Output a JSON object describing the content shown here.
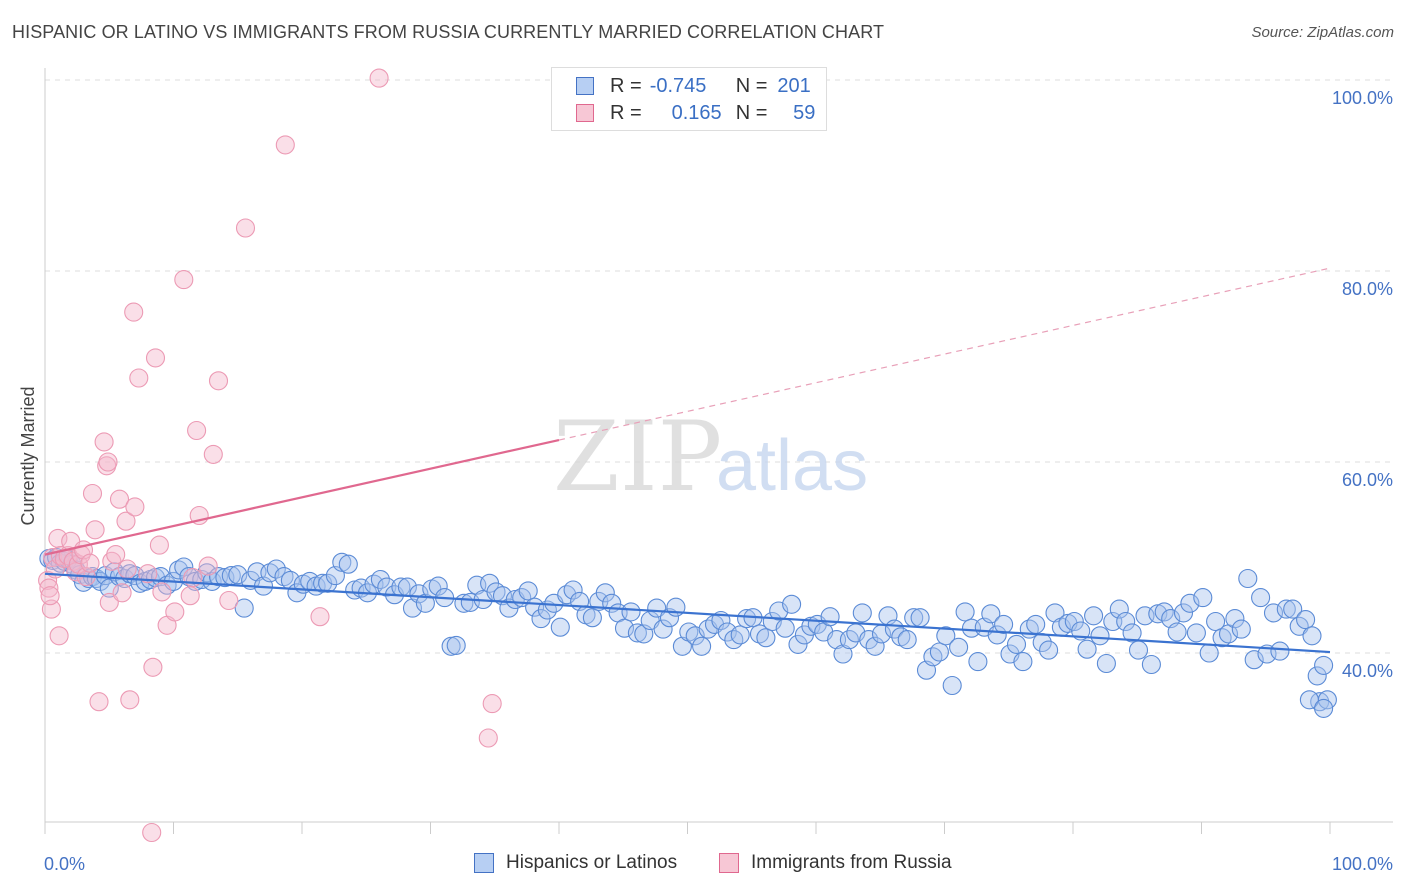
{
  "title": "HISPANIC OR LATINO VS IMMIGRANTS FROM RUSSIA CURRENTLY MARRIED CORRELATION CHART",
  "source": "Source: ZipAtlas.com",
  "watermark": {
    "zip": "ZIP",
    "atlas": "atlas"
  },
  "colors": {
    "blue": "#4472c4",
    "blue_fill": "#a9c4ee",
    "pink": "#e0688f",
    "pink_fill": "#f4b8cb",
    "grid": "#dddddd"
  },
  "legend": {
    "rows": [
      {
        "r_label": "R =",
        "r_value": "-0.745",
        "n_label": "N =",
        "n_value": "201"
      },
      {
        "r_label": "R =",
        "r_value": "0.165",
        "n_label": "N =",
        "n_value": "59"
      }
    ],
    "bottom": [
      "Hispanics or Latinos",
      "Immigrants from Russia"
    ]
  },
  "chart_data": {
    "type": "scatter",
    "title": "HISPANIC OR LATINO VS IMMIGRANTS FROM RUSSIA CURRENTLY MARRIED CORRELATION CHART",
    "xlabel": "",
    "ylabel": "Currently Married",
    "xlim": [
      0,
      100
    ],
    "ylim": [
      21,
      101.5
    ],
    "x_tick_labels": [
      "0.0%",
      "100.0%"
    ],
    "y_ticks": [
      40,
      60,
      80,
      100
    ],
    "y_tick_labels": [
      "40.0%",
      "60.0%",
      "80.0%",
      "100.0%"
    ],
    "grid": true,
    "legend_position": "top-center",
    "series": [
      {
        "name": "Hispanics or Latinos",
        "color": "#4472c4",
        "r": -0.745,
        "n": 201,
        "trend": {
          "x": [
            0,
            100
          ],
          "y": [
            48.3,
            40.1
          ],
          "style": "solid"
        },
        "points": [
          [
            0.3,
            49.9
          ],
          [
            0.6,
            49.7
          ],
          [
            0.9,
            50.0
          ],
          [
            1.2,
            49.4
          ],
          [
            1.5,
            49.6
          ],
          [
            1.8,
            49.8
          ],
          [
            2.1,
            49.3
          ],
          [
            2.4,
            48.7
          ],
          [
            2.7,
            48.2
          ],
          [
            3.0,
            47.4
          ],
          [
            3.4,
            47.8
          ],
          [
            3.7,
            48.0
          ],
          [
            4.0,
            47.8
          ],
          [
            4.3,
            47.5
          ],
          [
            4.7,
            48.1
          ],
          [
            5.0,
            46.8
          ],
          [
            5.4,
            48.5
          ],
          [
            5.8,
            48.0
          ],
          [
            6.2,
            47.8
          ],
          [
            6.6,
            48.3
          ],
          [
            7.0,
            48.1
          ],
          [
            7.4,
            47.3
          ],
          [
            7.8,
            47.5
          ],
          [
            8.2,
            47.7
          ],
          [
            8.6,
            47.9
          ],
          [
            9.0,
            48.0
          ],
          [
            9.5,
            47.1
          ],
          [
            10.0,
            47.5
          ],
          [
            10.4,
            48.7
          ],
          [
            10.8,
            49.0
          ],
          [
            11.2,
            48.0
          ],
          [
            11.7,
            47.5
          ],
          [
            12.2,
            47.7
          ],
          [
            12.6,
            48.4
          ],
          [
            13.0,
            47.5
          ],
          [
            13.5,
            48.0
          ],
          [
            14.0,
            47.9
          ],
          [
            14.5,
            48.1
          ],
          [
            15.0,
            48.2
          ],
          [
            15.5,
            44.7
          ],
          [
            16.0,
            47.6
          ],
          [
            16.5,
            48.5
          ],
          [
            17.0,
            47.0
          ],
          [
            17.5,
            48.4
          ],
          [
            18.0,
            48.8
          ],
          [
            18.6,
            48.0
          ],
          [
            19.1,
            47.6
          ],
          [
            19.6,
            46.3
          ],
          [
            20.1,
            47.2
          ],
          [
            20.6,
            47.5
          ],
          [
            21.1,
            47.0
          ],
          [
            21.6,
            47.3
          ],
          [
            22.0,
            47.3
          ],
          [
            22.6,
            48.1
          ],
          [
            23.1,
            49.5
          ],
          [
            23.6,
            49.3
          ],
          [
            24.1,
            46.6
          ],
          [
            24.6,
            46.8
          ],
          [
            25.1,
            46.3
          ],
          [
            25.6,
            47.2
          ],
          [
            26.1,
            47.7
          ],
          [
            26.6,
            46.9
          ],
          [
            27.2,
            46.1
          ],
          [
            27.7,
            46.9
          ],
          [
            28.2,
            46.9
          ],
          [
            28.6,
            44.7
          ],
          [
            29.1,
            46.2
          ],
          [
            29.6,
            45.2
          ],
          [
            30.1,
            46.7
          ],
          [
            30.6,
            47.0
          ],
          [
            31.1,
            45.8
          ],
          [
            31.6,
            40.7
          ],
          [
            32.0,
            40.8
          ],
          [
            32.6,
            45.2
          ],
          [
            33.1,
            45.3
          ],
          [
            33.6,
            47.1
          ],
          [
            34.1,
            45.6
          ],
          [
            34.6,
            47.3
          ],
          [
            35.1,
            46.4
          ],
          [
            35.6,
            46.0
          ],
          [
            36.1,
            44.7
          ],
          [
            36.6,
            45.6
          ],
          [
            37.1,
            45.8
          ],
          [
            37.6,
            46.5
          ],
          [
            38.1,
            44.8
          ],
          [
            38.6,
            43.6
          ],
          [
            39.1,
            44.5
          ],
          [
            39.6,
            45.2
          ],
          [
            40.1,
            42.7
          ],
          [
            40.6,
            46.1
          ],
          [
            41.1,
            46.6
          ],
          [
            41.6,
            45.4
          ],
          [
            42.1,
            44.0
          ],
          [
            42.6,
            43.7
          ],
          [
            43.1,
            45.4
          ],
          [
            43.6,
            46.3
          ],
          [
            44.1,
            45.2
          ],
          [
            44.6,
            44.2
          ],
          [
            45.1,
            42.6
          ],
          [
            45.6,
            44.3
          ],
          [
            46.1,
            42.1
          ],
          [
            46.6,
            42.0
          ],
          [
            47.1,
            43.4
          ],
          [
            47.6,
            44.7
          ],
          [
            48.1,
            42.5
          ],
          [
            48.6,
            43.7
          ],
          [
            49.1,
            44.8
          ],
          [
            49.6,
            40.7
          ],
          [
            50.1,
            42.2
          ],
          [
            50.6,
            41.8
          ],
          [
            51.1,
            40.7
          ],
          [
            51.6,
            42.5
          ],
          [
            52.1,
            43.0
          ],
          [
            52.6,
            43.4
          ],
          [
            53.1,
            42.2
          ],
          [
            53.6,
            41.4
          ],
          [
            54.1,
            41.9
          ],
          [
            54.6,
            43.6
          ],
          [
            55.1,
            43.7
          ],
          [
            55.6,
            42.0
          ],
          [
            56.1,
            41.6
          ],
          [
            56.6,
            43.3
          ],
          [
            57.1,
            44.4
          ],
          [
            57.6,
            42.6
          ],
          [
            58.1,
            45.1
          ],
          [
            58.6,
            40.9
          ],
          [
            59.1,
            41.9
          ],
          [
            59.6,
            42.8
          ],
          [
            60.1,
            43.0
          ],
          [
            60.6,
            42.2
          ],
          [
            61.1,
            43.8
          ],
          [
            61.6,
            41.4
          ],
          [
            62.1,
            39.9
          ],
          [
            62.6,
            41.4
          ],
          [
            63.1,
            42.1
          ],
          [
            63.6,
            44.2
          ],
          [
            64.1,
            41.4
          ],
          [
            64.6,
            40.7
          ],
          [
            65.1,
            42.0
          ],
          [
            65.6,
            43.9
          ],
          [
            66.1,
            42.5
          ],
          [
            66.6,
            41.7
          ],
          [
            67.1,
            41.4
          ],
          [
            67.6,
            43.7
          ],
          [
            68.1,
            43.7
          ],
          [
            68.6,
            38.2
          ],
          [
            69.1,
            39.6
          ],
          [
            69.6,
            40.1
          ],
          [
            70.1,
            41.8
          ],
          [
            70.6,
            36.6
          ],
          [
            71.1,
            40.6
          ],
          [
            71.6,
            44.3
          ],
          [
            72.1,
            42.6
          ],
          [
            72.6,
            39.1
          ],
          [
            73.1,
            42.7
          ],
          [
            73.6,
            44.1
          ],
          [
            74.1,
            41.9
          ],
          [
            74.6,
            43.0
          ],
          [
            75.1,
            39.9
          ],
          [
            75.6,
            40.9
          ],
          [
            76.1,
            39.1
          ],
          [
            76.6,
            42.5
          ],
          [
            77.1,
            43.0
          ],
          [
            77.6,
            41.1
          ],
          [
            78.1,
            40.3
          ],
          [
            78.6,
            44.2
          ],
          [
            79.1,
            42.7
          ],
          [
            79.6,
            43.1
          ],
          [
            80.1,
            43.3
          ],
          [
            80.6,
            42.3
          ],
          [
            81.1,
            40.4
          ],
          [
            81.6,
            43.9
          ],
          [
            82.1,
            41.8
          ],
          [
            82.6,
            38.9
          ],
          [
            83.1,
            43.3
          ],
          [
            83.6,
            44.6
          ],
          [
            84.1,
            43.3
          ],
          [
            84.6,
            42.1
          ],
          [
            85.1,
            40.3
          ],
          [
            85.6,
            43.9
          ],
          [
            86.1,
            38.8
          ],
          [
            86.6,
            44.1
          ],
          [
            87.1,
            44.3
          ],
          [
            87.6,
            43.6
          ],
          [
            88.1,
            42.2
          ],
          [
            88.6,
            44.2
          ],
          [
            89.1,
            45.2
          ],
          [
            89.6,
            42.1
          ],
          [
            90.1,
            45.8
          ],
          [
            90.6,
            40.0
          ],
          [
            91.1,
            43.3
          ],
          [
            91.6,
            41.6
          ],
          [
            92.1,
            42.0
          ],
          [
            92.6,
            43.6
          ],
          [
            93.1,
            42.5
          ],
          [
            93.6,
            47.8
          ],
          [
            94.1,
            39.3
          ],
          [
            94.6,
            45.8
          ],
          [
            95.1,
            39.9
          ],
          [
            95.6,
            44.2
          ],
          [
            96.1,
            40.2
          ],
          [
            96.6,
            44.6
          ],
          [
            97.1,
            44.6
          ],
          [
            97.6,
            42.8
          ],
          [
            98.1,
            43.5
          ],
          [
            98.6,
            41.8
          ],
          [
            99.0,
            37.6
          ],
          [
            99.5,
            38.7
          ],
          [
            99.2,
            34.9
          ],
          [
            98.4,
            35.1
          ],
          [
            99.8,
            35.1
          ],
          [
            99.5,
            34.2
          ]
        ]
      },
      {
        "name": "Immigrants from Russia",
        "color": "#e0688f",
        "r": 0.165,
        "n": 59,
        "trend": {
          "x": [
            0,
            40
          ],
          "y": [
            50.3,
            62.3
          ],
          "x_dashed": [
            40,
            100
          ],
          "y_dashed": [
            62.3,
            80.3
          ]
        },
        "points": [
          [
            0.2,
            47.6
          ],
          [
            0.3,
            46.8
          ],
          [
            0.5,
            44.6
          ],
          [
            0.6,
            50.0
          ],
          [
            0.8,
            48.8
          ],
          [
            1.0,
            52.0
          ],
          [
            1.2,
            50.2
          ],
          [
            1.5,
            49.9
          ],
          [
            1.8,
            50.2
          ],
          [
            2.0,
            51.7
          ],
          [
            2.2,
            49.6
          ],
          [
            2.4,
            48.5
          ],
          [
            2.6,
            49.3
          ],
          [
            2.8,
            50.3
          ],
          [
            3.0,
            50.8
          ],
          [
            3.2,
            48.0
          ],
          [
            3.5,
            49.4
          ],
          [
            3.7,
            56.7
          ],
          [
            3.9,
            52.9
          ],
          [
            4.2,
            34.9
          ],
          [
            4.6,
            62.1
          ],
          [
            4.8,
            59.6
          ],
          [
            4.9,
            60.0
          ],
          [
            5.0,
            45.3
          ],
          [
            5.2,
            49.6
          ],
          [
            5.5,
            50.3
          ],
          [
            5.8,
            56.1
          ],
          [
            6.0,
            46.3
          ],
          [
            6.3,
            53.8
          ],
          [
            6.6,
            35.1
          ],
          [
            6.4,
            48.8
          ],
          [
            6.9,
            75.7
          ],
          [
            7.0,
            55.3
          ],
          [
            7.3,
            68.8
          ],
          [
            8.0,
            48.3
          ],
          [
            8.4,
            38.5
          ],
          [
            8.6,
            70.9
          ],
          [
            8.9,
            51.3
          ],
          [
            9.1,
            46.4
          ],
          [
            9.5,
            42.9
          ],
          [
            10.1,
            44.3
          ],
          [
            10.8,
            79.1
          ],
          [
            11.3,
            46.0
          ],
          [
            11.5,
            47.9
          ],
          [
            11.8,
            63.3
          ],
          [
            12.0,
            54.4
          ],
          [
            12.7,
            49.1
          ],
          [
            13.1,
            60.8
          ],
          [
            13.5,
            68.5
          ],
          [
            14.3,
            45.5
          ],
          [
            15.6,
            84.5
          ],
          [
            18.7,
            93.2
          ],
          [
            21.4,
            43.8
          ],
          [
            26.0,
            100.2
          ],
          [
            34.8,
            34.7
          ],
          [
            34.5,
            31.1
          ],
          [
            8.3,
            21.2
          ],
          [
            0.4,
            46.0
          ],
          [
            1.1,
            41.8
          ]
        ]
      }
    ]
  }
}
